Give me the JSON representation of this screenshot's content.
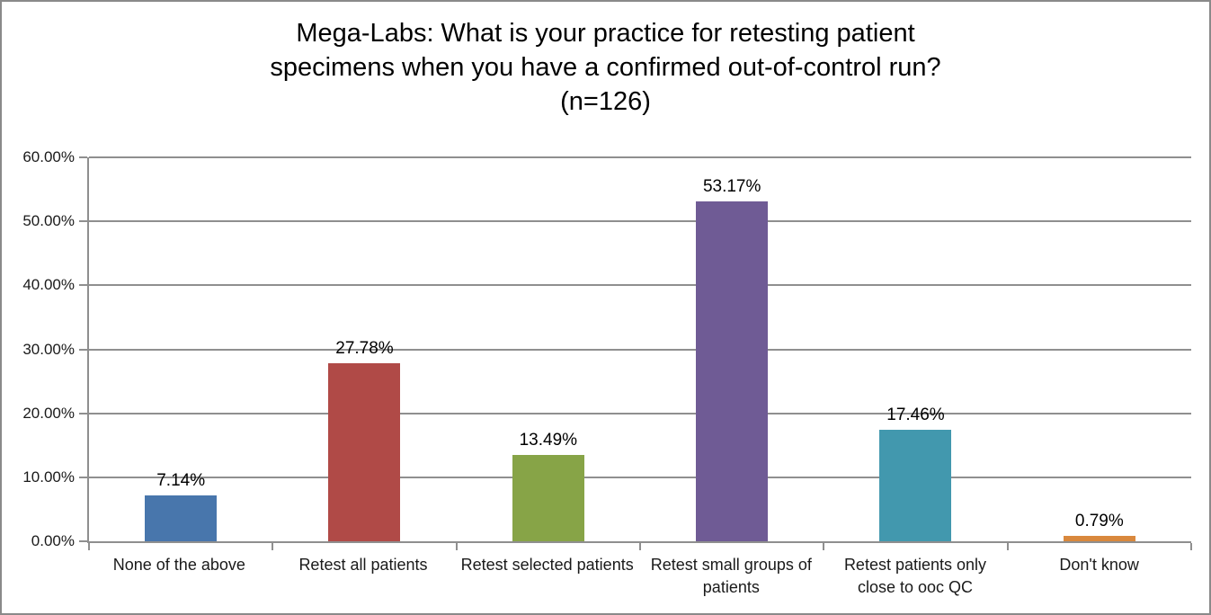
{
  "chart_data": {
    "type": "bar",
    "title": "Mega-Labs: What is your practice for retesting patient specimens when you have a confirmed out-of-control run? (n=126)",
    "title_lines": [
      "Mega-Labs: What is your practice for retesting patient",
      "specimens when you have a confirmed out-of-control run?",
      "(n=126)"
    ],
    "categories": [
      "None of the above",
      "Retest all patients",
      "Retest selected patients",
      "Retest small groups of patients",
      "Retest patients only close to ooc QC",
      "Don't know"
    ],
    "categories_lines": [
      [
        "None of the above"
      ],
      [
        "Retest all patients"
      ],
      [
        "Retest selected patients"
      ],
      [
        "Retest small groups of",
        "patients"
      ],
      [
        "Retest patients only",
        "close to ooc QC"
      ],
      [
        "Don't know"
      ]
    ],
    "values": [
      7.14,
      27.78,
      13.49,
      53.17,
      17.46,
      0.79
    ],
    "value_labels": [
      "7.14%",
      "27.78%",
      "13.49%",
      "53.17%",
      "17.46%",
      "0.79%"
    ],
    "bar_colors": [
      "#4876ac",
      "#b04a47",
      "#87a447",
      "#6f5b95",
      "#4298ae",
      "#d9883d"
    ],
    "xlabel": "",
    "ylabel": "",
    "ylim": [
      0,
      60
    ],
    "ytick_labels": [
      "0.00%",
      "10.00%",
      "20.00%",
      "30.00%",
      "40.00%",
      "50.00%",
      "60.00%"
    ],
    "grid": true,
    "legend": "none",
    "axis_color": "#8f8f8f"
  }
}
